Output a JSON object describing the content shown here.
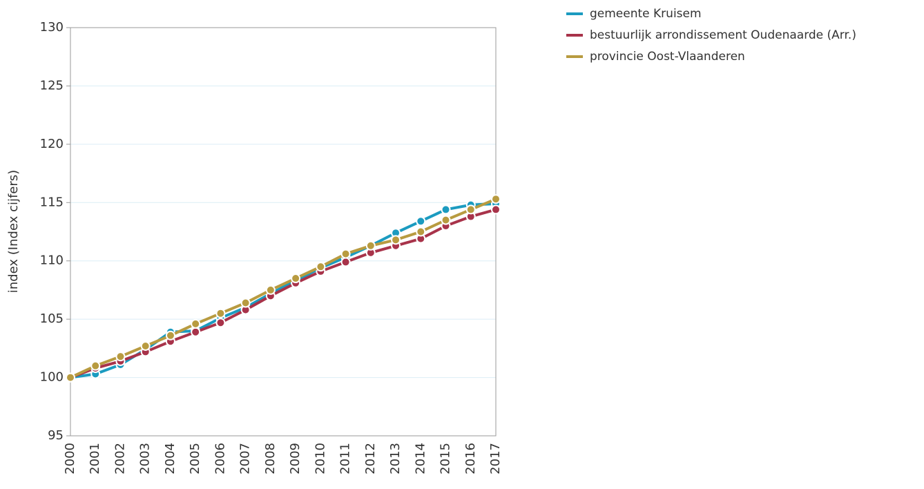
{
  "chart_data": {
    "type": "line",
    "y_label": "index (Index cijfers)",
    "categories": [
      "2000",
      "2001",
      "2002",
      "2003",
      "2004",
      "2005",
      "2006",
      "2007",
      "2008",
      "2009",
      "2010",
      "2011",
      "2012",
      "2013",
      "2014",
      "2015",
      "2016",
      "2017"
    ],
    "series": [
      {
        "name": "gemeente Kruisem",
        "color": "#1b9bc0",
        "values": [
          100,
          100.3,
          101.1,
          102.4,
          103.9,
          104.0,
          105.1,
          106.0,
          107.2,
          108.3,
          109.4,
          110.3,
          111.3,
          112.4,
          113.4,
          114.4,
          114.8,
          114.9
        ]
      },
      {
        "name": "bestuurlijk arrondissement Oudenaarde (Arr.)",
        "color": "#a8334a",
        "values": [
          100,
          100.8,
          101.4,
          102.2,
          103.1,
          103.9,
          104.7,
          105.8,
          107.0,
          108.1,
          109.1,
          109.9,
          110.7,
          111.3,
          111.9,
          113.0,
          113.8,
          114.4
        ]
      },
      {
        "name": "provincie Oost-Vlaanderen",
        "color": "#b89b40",
        "values": [
          100,
          101.0,
          101.8,
          102.7,
          103.6,
          104.6,
          105.5,
          106.4,
          107.5,
          108.5,
          109.5,
          110.6,
          111.3,
          111.8,
          112.5,
          113.5,
          114.4,
          115.3
        ]
      }
    ],
    "ylim": [
      95,
      130
    ],
    "yticks": [
      95,
      100,
      105,
      110,
      115,
      120,
      125,
      130
    ],
    "grid": true,
    "legend": "top-right"
  }
}
